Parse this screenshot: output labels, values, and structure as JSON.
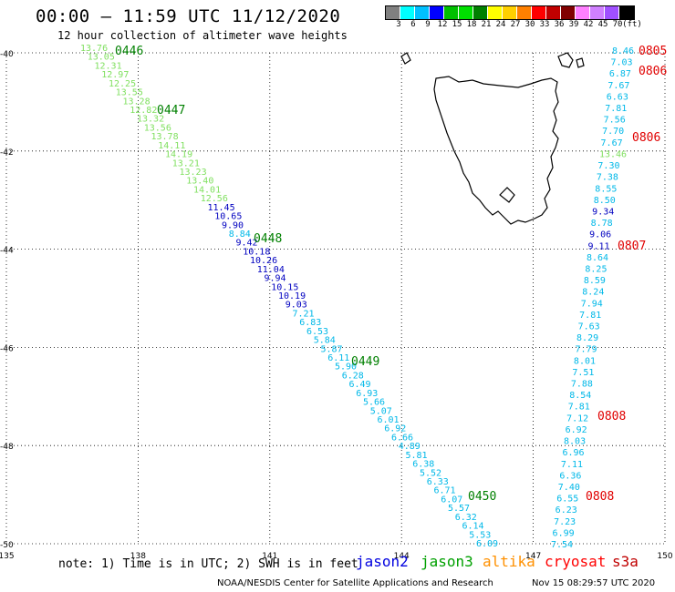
{
  "header": {
    "title": "00:00 – 11:59 UTC 11/12/2020",
    "subtitle": "12 hour collection of altimeter wave heights"
  },
  "colorbar": {
    "ticks": [
      "3",
      "6",
      "9",
      "12",
      "15",
      "18",
      "21",
      "24",
      "27",
      "30",
      "33",
      "36",
      "39",
      "42",
      "45",
      "70",
      "(ft)"
    ],
    "colors": [
      "#808080",
      "#00ffff",
      "#00c0ff",
      "#0000ff",
      "#00c000",
      "#00e000",
      "#008000",
      "#ffff00",
      "#ffd000",
      "#ff8000",
      "#ff0000",
      "#c00000",
      "#800000",
      "#ff80ff",
      "#d080ff",
      "#a050ff",
      "#000000"
    ]
  },
  "map": {
    "lat_ticks": [
      "-40",
      "-42",
      "-44",
      "-46",
      "-48",
      "-50"
    ],
    "lon_ticks": [
      "135",
      "138",
      "141",
      "144",
      "147",
      "150"
    ],
    "extent": {
      "lon": [
        135,
        150
      ],
      "lat": [
        -50,
        -40
      ]
    }
  },
  "tracks": {
    "west": [
      {
        "v": "13.76",
        "c": "#80e060"
      },
      {
        "v": "13.05",
        "c": "#80e060"
      },
      {
        "v": "12.31",
        "c": "#80e060"
      },
      {
        "v": "12.97",
        "c": "#80e060"
      },
      {
        "v": "12.25",
        "c": "#80e060"
      },
      {
        "v": "13.55",
        "c": "#80e060"
      },
      {
        "v": "13.28",
        "c": "#80e060"
      },
      {
        "v": "12.82",
        "c": "#80e060"
      },
      {
        "v": "13.32",
        "c": "#80e060"
      },
      {
        "v": "13.56",
        "c": "#80e060"
      },
      {
        "v": "13.78",
        "c": "#80e060"
      },
      {
        "v": "14.11",
        "c": "#80e060"
      },
      {
        "v": "14.19",
        "c": "#80e060"
      },
      {
        "v": "13.21",
        "c": "#80e060"
      },
      {
        "v": "13.23",
        "c": "#80e060"
      },
      {
        "v": "13.40",
        "c": "#80e060"
      },
      {
        "v": "14.01",
        "c": "#80e060"
      },
      {
        "v": "12.56",
        "c": "#80e060"
      },
      {
        "v": "11.45",
        "c": "#0000c0"
      },
      {
        "v": "10.65",
        "c": "#0000c0"
      },
      {
        "v": "9.90",
        "c": "#0000c0"
      },
      {
        "v": "8.84",
        "c": "#00b8e8"
      },
      {
        "v": "9.42",
        "c": "#0000c0"
      },
      {
        "v": "10.18",
        "c": "#0000c0"
      },
      {
        "v": "10.26",
        "c": "#0000c0"
      },
      {
        "v": "11.04",
        "c": "#0000c0"
      },
      {
        "v": "9.94",
        "c": "#0000c0"
      },
      {
        "v": "10.15",
        "c": "#0000c0"
      },
      {
        "v": "10.19",
        "c": "#0000c0"
      },
      {
        "v": "9.03",
        "c": "#0000c0"
      },
      {
        "v": "7.21",
        "c": "#00b8e8"
      },
      {
        "v": "6.83",
        "c": "#00b8e8"
      },
      {
        "v": "6.53",
        "c": "#00b8e8"
      },
      {
        "v": "5.84",
        "c": "#00b8e8"
      },
      {
        "v": "5.87",
        "c": "#00b8e8"
      },
      {
        "v": "6.11",
        "c": "#00b8e8"
      },
      {
        "v": "5.90",
        "c": "#00b8e8"
      },
      {
        "v": "6.28",
        "c": "#00b8e8"
      },
      {
        "v": "6.49",
        "c": "#00b8e8"
      },
      {
        "v": "6.93",
        "c": "#00b8e8"
      },
      {
        "v": "5.66",
        "c": "#00b8e8"
      },
      {
        "v": "5.07",
        "c": "#00b8e8"
      },
      {
        "v": "6.01",
        "c": "#00b8e8"
      },
      {
        "v": "6.92",
        "c": "#00b8e8"
      },
      {
        "v": "6.66",
        "c": "#00b8e8"
      },
      {
        "v": "4.89",
        "c": "#00b8e8"
      },
      {
        "v": "5.81",
        "c": "#00b8e8"
      },
      {
        "v": "6.38",
        "c": "#00b8e8"
      },
      {
        "v": "5.52",
        "c": "#00b8e8"
      },
      {
        "v": "6.33",
        "c": "#00b8e8"
      },
      {
        "v": "6.71",
        "c": "#00b8e8"
      },
      {
        "v": "6.07",
        "c": "#00b8e8"
      },
      {
        "v": "5.57",
        "c": "#00b8e8"
      },
      {
        "v": "6.32",
        "c": "#00b8e8"
      },
      {
        "v": "6.14",
        "c": "#00b8e8"
      },
      {
        "v": "5.53",
        "c": "#00b8e8"
      },
      {
        "v": "6.09",
        "c": "#00b8e8"
      }
    ],
    "east": [
      {
        "v": "8.46",
        "c": "#00b8e8"
      },
      {
        "v": "7.03",
        "c": "#00b8e8"
      },
      {
        "v": "6.87",
        "c": "#00b8e8"
      },
      {
        "v": "7.67",
        "c": "#00b8e8"
      },
      {
        "v": "6.63",
        "c": "#00b8e8"
      },
      {
        "v": "7.81",
        "c": "#00b8e8"
      },
      {
        "v": "7.56",
        "c": "#00b8e8"
      },
      {
        "v": "7.70",
        "c": "#00b8e8"
      },
      {
        "v": "7.67",
        "c": "#00b8e8"
      },
      {
        "v": "13.46",
        "c": "#80e060"
      },
      {
        "v": "7.30",
        "c": "#00b8e8"
      },
      {
        "v": "7.38",
        "c": "#00b8e8"
      },
      {
        "v": "8.55",
        "c": "#00b8e8"
      },
      {
        "v": "8.50",
        "c": "#00b8e8"
      },
      {
        "v": "9.34",
        "c": "#0000c0"
      },
      {
        "v": "8.78",
        "c": "#00b8e8"
      },
      {
        "v": "9.06",
        "c": "#0000c0"
      },
      {
        "v": "9.11",
        "c": "#0000c0"
      },
      {
        "v": "8.64",
        "c": "#00b8e8"
      },
      {
        "v": "8.25",
        "c": "#00b8e8"
      },
      {
        "v": "8.59",
        "c": "#00b8e8"
      },
      {
        "v": "8.24",
        "c": "#00b8e8"
      },
      {
        "v": "7.94",
        "c": "#00b8e8"
      },
      {
        "v": "7.81",
        "c": "#00b8e8"
      },
      {
        "v": "7.63",
        "c": "#00b8e8"
      },
      {
        "v": "8.29",
        "c": "#00b8e8"
      },
      {
        "v": "7.79",
        "c": "#00b8e8"
      },
      {
        "v": "8.01",
        "c": "#00b8e8"
      },
      {
        "v": "7.51",
        "c": "#00b8e8"
      },
      {
        "v": "7.88",
        "c": "#00b8e8"
      },
      {
        "v": "8.54",
        "c": "#00b8e8"
      },
      {
        "v": "7.81",
        "c": "#00b8e8"
      },
      {
        "v": "7.12",
        "c": "#00b8e8"
      },
      {
        "v": "6.92",
        "c": "#00b8e8"
      },
      {
        "v": "8.03",
        "c": "#00b8e8"
      },
      {
        "v": "6.96",
        "c": "#00b8e8"
      },
      {
        "v": "7.11",
        "c": "#00b8e8"
      },
      {
        "v": "6.36",
        "c": "#00b8e8"
      },
      {
        "v": "7.40",
        "c": "#00b8e8"
      },
      {
        "v": "6.55",
        "c": "#00b8e8"
      },
      {
        "v": "6.23",
        "c": "#00b8e8"
      },
      {
        "v": "7.23",
        "c": "#00b8e8"
      },
      {
        "v": "6.99",
        "c": "#00b8e8"
      },
      {
        "v": "7.54",
        "c": "#00b8e8"
      }
    ]
  },
  "time_labels": {
    "west": [
      {
        "t": "0446",
        "c": "#008000"
      },
      {
        "t": "0447",
        "c": "#008000"
      },
      {
        "t": "0448",
        "c": "#008000"
      },
      {
        "t": "0449",
        "c": "#008000"
      },
      {
        "t": "0450",
        "c": "#008000"
      }
    ],
    "east": [
      {
        "t": "0805",
        "c": "#e00000"
      },
      {
        "t": "0806",
        "c": "#e00000"
      },
      {
        "t": "0806",
        "c": "#e00000"
      },
      {
        "t": "0807",
        "c": "#e00000"
      },
      {
        "t": "0808",
        "c": "#e00000"
      },
      {
        "t": "0808",
        "c": "#e00000"
      }
    ]
  },
  "footer": {
    "note": "note: 1) Time is in UTC; 2) SWH is in feet",
    "legend": [
      {
        "name": "jason2",
        "color": "#0000e0"
      },
      {
        "name": "jason3",
        "color": "#00a000"
      },
      {
        "name": "altika",
        "color": "#ff9000"
      },
      {
        "name": "cryosat",
        "color": "#ff0000"
      },
      {
        "name": "s3a",
        "color": "#c00000"
      }
    ],
    "credit": "NOAA/NESDIS Center for Satellite Applications and Research",
    "timestamp": "Nov 15 08:29:57 UTC 2020"
  }
}
